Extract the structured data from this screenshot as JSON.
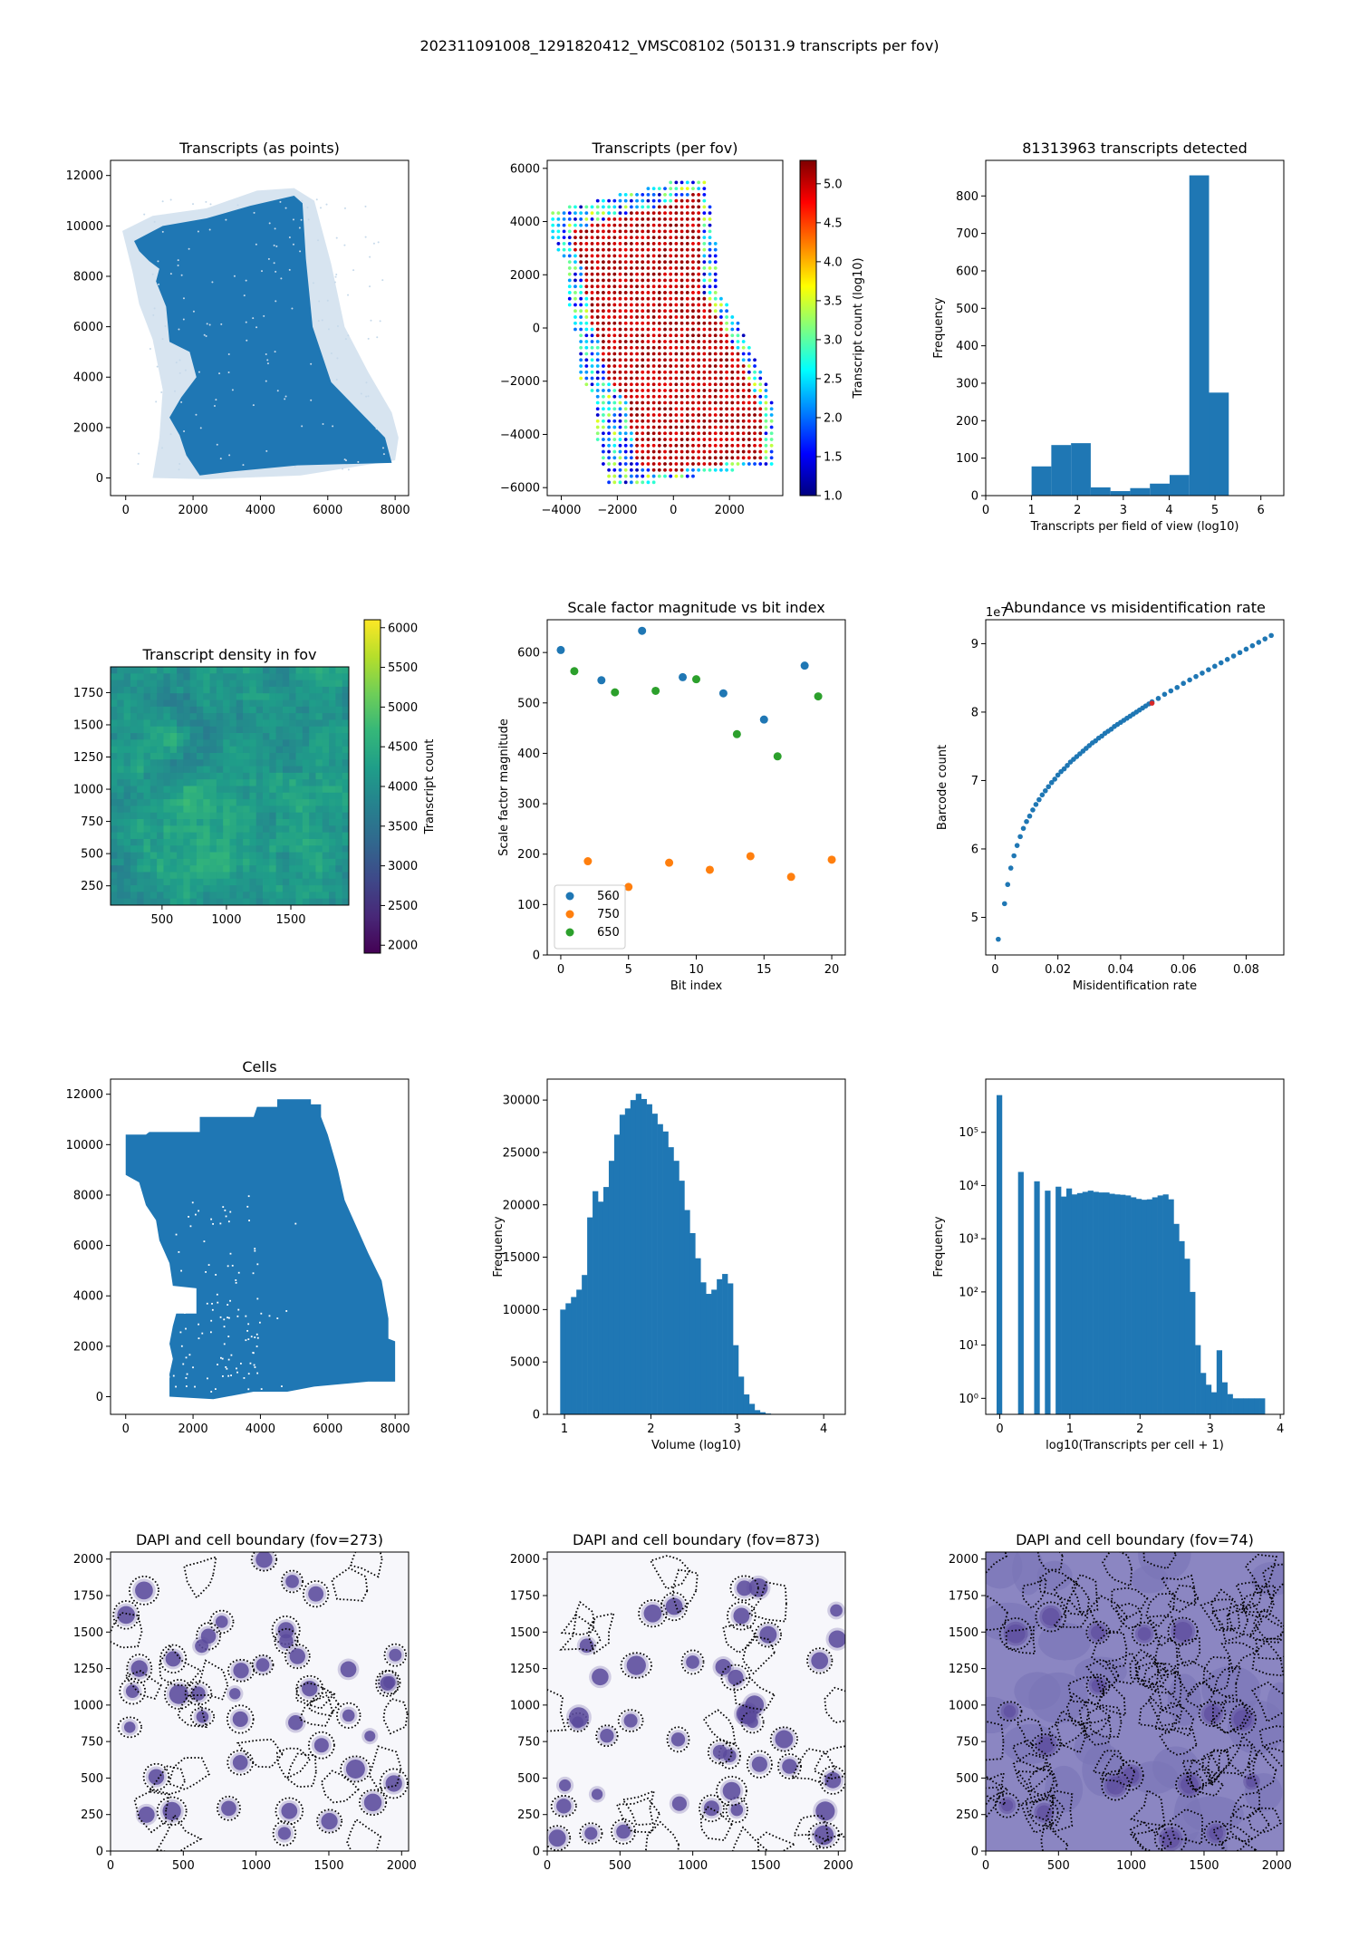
{
  "figure": {
    "suptitle": "202311091008_1291820412_VMSC08102 (50131.9 transcripts per fov)"
  },
  "colors": {
    "blue": "#1f77b4",
    "orange": "#ff7f0e",
    "green": "#2ca02c",
    "light_blue": "#c6d9ea",
    "dapi_purple": "#5a4a9c",
    "dapi_bg_dark": "#8b86c2"
  },
  "chart_data": [
    {
      "id": "transcripts-points",
      "type": "scatter",
      "title": "Transcripts (as points)",
      "xlabel": "",
      "ylabel": "",
      "xlim": [
        -450,
        8400
      ],
      "ylim": [
        -700,
        12600
      ],
      "xticks": [
        0,
        2000,
        4000,
        6000,
        8000
      ],
      "yticks": [
        0,
        2000,
        4000,
        6000,
        8000,
        10000,
        12000
      ],
      "description_shape": "dense tilted tissue section filled in blue, lighter halo of sparse points along the edges"
    },
    {
      "id": "transcripts-per-fov",
      "type": "scatter",
      "title": "Transcripts (per fov)",
      "xlabel": "",
      "ylabel": "",
      "xlim": [
        -4500,
        3900
      ],
      "ylim": [
        -6300,
        6300
      ],
      "xticks": [
        -4000,
        -2000,
        0,
        2000
      ],
      "yticks": [
        -6000,
        -4000,
        -2000,
        0,
        2000,
        4000,
        6000
      ],
      "colorbar": {
        "label": "Transcript count (log10)",
        "min": 1.0,
        "max": 5.3,
        "ticks": [
          1.0,
          1.5,
          2.0,
          2.5,
          3.0,
          3.5,
          4.0,
          4.5,
          5.0
        ],
        "colormap": "jet"
      }
    },
    {
      "id": "fov-histogram",
      "type": "bar",
      "title": "81313963 transcripts detected",
      "xlabel": "Transcripts per field of view (log10)",
      "ylabel": "Frequency",
      "xlim": [
        0,
        6.5
      ],
      "ylim": [
        0,
        895
      ],
      "xticks": [
        0,
        1,
        2,
        3,
        4,
        5,
        6
      ],
      "yticks": [
        0,
        100,
        200,
        300,
        400,
        500,
        600,
        700,
        800
      ],
      "bin_edges": [
        1.0,
        1.43,
        1.86,
        2.29,
        2.72,
        3.15,
        3.58,
        4.01,
        4.44,
        4.87,
        5.3
      ],
      "values": [
        78,
        135,
        140,
        22,
        12,
        20,
        32,
        55,
        855,
        275
      ]
    },
    {
      "id": "density-in-fov",
      "type": "heatmap",
      "title": "Transcript density in fov",
      "xlabel": "",
      "ylabel": "",
      "xlim": [
        100,
        1950
      ],
      "ylim": [
        100,
        1950
      ],
      "xticks": [
        500,
        1000,
        1500
      ],
      "yticks": [
        250,
        500,
        750,
        1000,
        1250,
        1500,
        1750
      ],
      "colorbar": {
        "label": "Transcript count",
        "min": 1900,
        "max": 6100,
        "ticks": [
          2000,
          2500,
          3000,
          3500,
          4000,
          4500,
          5000,
          5500,
          6000
        ],
        "colormap": "viridis"
      }
    },
    {
      "id": "scale-factor",
      "type": "scatter",
      "title": "Scale factor magnitude vs bit index",
      "xlabel": "Bit index",
      "ylabel": "Scale factor magnitude",
      "xlim": [
        -1,
        21
      ],
      "ylim": [
        0,
        665
      ],
      "xticks": [
        0,
        5,
        10,
        15,
        20
      ],
      "yticks": [
        0,
        100,
        200,
        300,
        400,
        500,
        600
      ],
      "legend": "lower-left",
      "series": [
        {
          "name": "560",
          "x": [
            0,
            3,
            6,
            9,
            12,
            15,
            18
          ],
          "y": [
            605,
            545,
            643,
            551,
            519,
            467,
            574
          ]
        },
        {
          "name": "750",
          "x": [
            2,
            5,
            8,
            11,
            14,
            17,
            20
          ],
          "y": [
            186,
            135,
            183,
            169,
            196,
            155,
            189
          ]
        },
        {
          "name": "650",
          "x": [
            1,
            4,
            7,
            10,
            13,
            16,
            19
          ],
          "y": [
            563,
            521,
            524,
            547,
            438,
            394,
            513
          ]
        }
      ]
    },
    {
      "id": "abundance",
      "type": "scatter",
      "title": "Abundance vs misidentification rate",
      "xlabel": "Misidentification rate",
      "ylabel": "Barcode count",
      "offset_label": "1e7",
      "xlim": [
        -0.003,
        0.092
      ],
      "ylim": [
        4.45,
        9.35
      ],
      "xticks": [
        0.0,
        0.02,
        0.04,
        0.06,
        0.08
      ],
      "yticks": [
        5,
        6,
        7,
        8,
        9
      ],
      "series": [
        {
          "name": "",
          "x": [
            0.001,
            0.003,
            0.004,
            0.005,
            0.006,
            0.007,
            0.008,
            0.009,
            0.01,
            0.011,
            0.012,
            0.013,
            0.014,
            0.015,
            0.016,
            0.017,
            0.018,
            0.019,
            0.02,
            0.021,
            0.022,
            0.023,
            0.024,
            0.025,
            0.026,
            0.027,
            0.028,
            0.029,
            0.03,
            0.031,
            0.032,
            0.033,
            0.034,
            0.035,
            0.036,
            0.037,
            0.038,
            0.039,
            0.04,
            0.041,
            0.042,
            0.043,
            0.044,
            0.045,
            0.046,
            0.047,
            0.048,
            0.049,
            0.05,
            0.052,
            0.054,
            0.056,
            0.058,
            0.06,
            0.062,
            0.064,
            0.066,
            0.068,
            0.07,
            0.072,
            0.074,
            0.076,
            0.078,
            0.08,
            0.082,
            0.084,
            0.086,
            0.088
          ],
          "y": [
            4.68,
            5.2,
            5.48,
            5.72,
            5.9,
            6.05,
            6.18,
            6.3,
            6.4,
            6.48,
            6.57,
            6.65,
            6.72,
            6.79,
            6.85,
            6.91,
            6.97,
            7.02,
            7.08,
            7.13,
            7.17,
            7.22,
            7.27,
            7.31,
            7.35,
            7.39,
            7.43,
            7.47,
            7.51,
            7.55,
            7.58,
            7.62,
            7.65,
            7.69,
            7.72,
            7.75,
            7.79,
            7.82,
            7.85,
            7.88,
            7.91,
            7.94,
            7.97,
            8.0,
            8.03,
            8.06,
            8.09,
            8.12,
            8.15,
            8.2,
            8.26,
            8.31,
            8.36,
            8.42,
            8.47,
            8.52,
            8.57,
            8.62,
            8.67,
            8.72,
            8.77,
            8.82,
            8.87,
            8.92,
            8.97,
            9.02,
            9.07,
            9.12
          ]
        }
      ],
      "highlight": {
        "x": 0.05,
        "y": 8.13
      }
    },
    {
      "id": "cells",
      "type": "scatter",
      "title": "Cells",
      "xlabel": "",
      "ylabel": "",
      "xlim": [
        -450,
        8400
      ],
      "ylim": [
        -700,
        12600
      ],
      "xticks": [
        0,
        2000,
        4000,
        6000,
        8000
      ],
      "yticks": [
        0,
        2000,
        4000,
        6000,
        8000,
        10000,
        12000
      ]
    },
    {
      "id": "volume-histogram",
      "type": "bar",
      "title": "",
      "xlabel": "Volume (log10)",
      "ylabel": "Frequency",
      "xlim": [
        0.8,
        4.25
      ],
      "ylim": [
        0,
        32000
      ],
      "xticks": [
        1,
        2,
        3,
        4
      ],
      "yticks": [
        0,
        5000,
        10000,
        15000,
        20000,
        25000,
        30000
      ],
      "bin_start": 0.95,
      "bin_width": 0.0625,
      "values": [
        10000,
        10600,
        11200,
        11900,
        13300,
        18800,
        21300,
        20300,
        21700,
        24200,
        26700,
        28600,
        29200,
        30000,
        30600,
        30100,
        29600,
        28700,
        27700,
        27000,
        25500,
        24200,
        22300,
        19500,
        17300,
        14900,
        12600,
        11500,
        11900,
        12900,
        13400,
        12500,
        6600,
        3600,
        1900,
        1000,
        400,
        200,
        80,
        30,
        10
      ]
    },
    {
      "id": "transcripts-per-cell-histogram",
      "type": "bar",
      "title": "",
      "xlabel": "log10(Transcripts per cell + 1)",
      "ylabel": "Frequency",
      "yscale": "log",
      "xlim": [
        -0.2,
        4.05
      ],
      "ylim": [
        0.5,
        1000000
      ],
      "xticks": [
        0,
        1,
        2,
        3,
        4
      ],
      "yticks": [
        1,
        10,
        100,
        1000,
        10000,
        100000
      ],
      "ytick_labels": [
        "10⁰",
        "10¹",
        "10²",
        "10³",
        "10⁴",
        "10⁵"
      ],
      "bin_start": -0.045,
      "bin_width": 0.0765,
      "values": [
        500000,
        0,
        0,
        0,
        18000,
        0,
        0,
        12000,
        0,
        8000,
        0,
        9500,
        6200,
        8800,
        6800,
        7200,
        7600,
        8000,
        7600,
        7400,
        7400,
        7000,
        6800,
        6700,
        6500,
        6000,
        5600,
        5400,
        5500,
        6000,
        6500,
        6800,
        5500,
        1900,
        900,
        420,
        100,
        10,
        3,
        1.8,
        1.3,
        8,
        2,
        1.2,
        1.0,
        1.0,
        1.0,
        1.0,
        1.0,
        1.0
      ]
    },
    {
      "id": "dapi-273",
      "type": "heatmap",
      "title": "DAPI and cell boundary (fov=273)",
      "xlabel": "",
      "ylabel": "",
      "xlim": [
        0,
        2048
      ],
      "ylim": [
        0,
        2048
      ],
      "xticks": [
        0,
        500,
        1000,
        1500,
        2000
      ],
      "yticks": [
        0,
        250,
        500,
        750,
        1000,
        1250,
        1500,
        1750,
        2000
      ],
      "background": "light"
    },
    {
      "id": "dapi-873",
      "type": "heatmap",
      "title": "DAPI and cell boundary (fov=873)",
      "xlabel": "",
      "ylabel": "",
      "xlim": [
        0,
        2048
      ],
      "ylim": [
        0,
        2048
      ],
      "xticks": [
        0,
        500,
        1000,
        1500,
        2000
      ],
      "yticks": [
        0,
        250,
        500,
        750,
        1000,
        1250,
        1500,
        1750,
        2000
      ],
      "background": "light"
    },
    {
      "id": "dapi-74",
      "type": "heatmap",
      "title": "DAPI and cell boundary (fov=74)",
      "xlabel": "",
      "ylabel": "",
      "xlim": [
        0,
        2048
      ],
      "ylim": [
        0,
        2048
      ],
      "xticks": [
        0,
        500,
        1000,
        1500,
        2000
      ],
      "yticks": [
        0,
        250,
        500,
        750,
        1000,
        1250,
        1500,
        1750,
        2000
      ],
      "background": "dark"
    }
  ]
}
